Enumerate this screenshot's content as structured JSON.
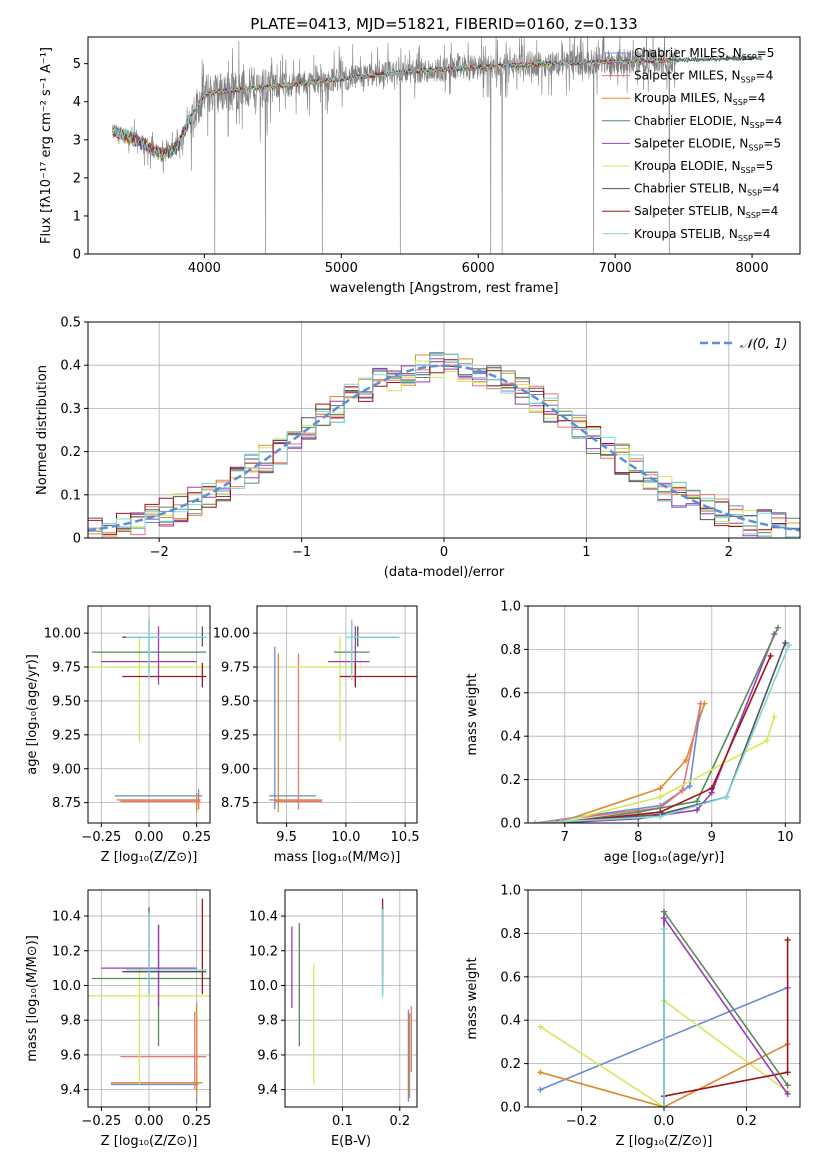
{
  "colors": {
    "Chabrier MILES": "#6a8cd8",
    "Salpeter MILES": "#e6786e",
    "Kroupa MILES": "#e08a2e",
    "Chabrier ELODIE": "#5a8a5a",
    "Salpeter ELODIE": "#9b3bb8",
    "Kroupa ELODIE": "#d4e85a",
    "Chabrier STELIB": "#555555",
    "Salpeter STELIB": "#a01418",
    "Kroupa STELIB": "#7fd8d8",
    "data": "#808080",
    "normal": "#5b8fd6"
  },
  "chart_data": [
    {
      "type": "line",
      "title": "PLATE=0413, MJD=51821, FIBERID=0160, z=0.133",
      "xlabel": "wavelength [Angstrom, rest frame]",
      "ylabel": "Flux [fλ10⁻¹⁷ erg cm⁻² s⁻¹ A⁻¹]",
      "xlim": [
        3150,
        8350
      ],
      "ylim": [
        0,
        5.7
      ],
      "xticks": [
        4000,
        5000,
        6000,
        7000,
        8000
      ],
      "yticks": [
        0,
        1,
        2,
        3,
        4,
        5
      ],
      "legend": [
        {
          "label": "Chabrier MILES, N",
          "sub": "SSP",
          "rest": "=5",
          "key": "Chabrier MILES"
        },
        {
          "label": "Salpeter MILES, N",
          "sub": "SSP",
          "rest": "=4",
          "key": "Salpeter MILES"
        },
        {
          "label": "Kroupa MILES, N",
          "sub": "SSP",
          "rest": "=4",
          "key": "Kroupa MILES"
        },
        {
          "label": "Chabrier ELODIE, N",
          "sub": "SSP",
          "rest": "=4",
          "key": "Chabrier ELODIE"
        },
        {
          "label": "Salpeter ELODIE, N",
          "sub": "SSP",
          "rest": "=5",
          "key": "Salpeter ELODIE"
        },
        {
          "label": "Kroupa ELODIE, N",
          "sub": "SSP",
          "rest": "=5",
          "key": "Kroupa ELODIE"
        },
        {
          "label": "Chabrier STELIB, N",
          "sub": "SSP",
          "rest": "=4",
          "key": "Chabrier STELIB"
        },
        {
          "label": "Salpeter STELIB, N",
          "sub": "SSP",
          "rest": "=4",
          "key": "Salpeter STELIB"
        },
        {
          "label": "Kroupa STELIB, N",
          "sub": "SSP",
          "rest": "=4",
          "key": "Kroupa STELIB"
        }
      ],
      "legend_position": "upper right",
      "continuum": [
        [
          3350,
          3.2
        ],
        [
          3500,
          3.0
        ],
        [
          3700,
          2.6
        ],
        [
          3800,
          2.8
        ],
        [
          3900,
          3.6
        ],
        [
          4000,
          4.2
        ],
        [
          4200,
          4.3
        ],
        [
          4500,
          4.4
        ],
        [
          5000,
          4.6
        ],
        [
          5500,
          4.8
        ],
        [
          6000,
          4.9
        ],
        [
          6500,
          5.0
        ],
        [
          7000,
          5.05
        ],
        [
          7500,
          5.1
        ],
        [
          8000,
          5.15
        ],
        [
          8100,
          5.15
        ]
      ]
    },
    {
      "type": "bar",
      "xlabel": "(data-model)/error",
      "ylabel": "Normed distribution",
      "xlim": [
        -2.5,
        2.5
      ],
      "ylim": [
        0,
        0.5
      ],
      "xticks": [
        -2,
        -1,
        0,
        1,
        2
      ],
      "yticks": [
        0.0,
        0.1,
        0.2,
        0.3,
        0.4,
        0.5
      ],
      "grid": true,
      "bin_width": 0.1,
      "legend": [
        {
          "label": "𝒩(0, 1)",
          "key": "normal"
        }
      ],
      "legend_position": "upper right"
    },
    {
      "type": "scatter",
      "xlabel": "Z [log₁₀(Z/Z⊙)]",
      "ylabel": "age  [log₁₀(age/yr)]",
      "xlim": [
        -0.32,
        0.32
      ],
      "ylim": [
        8.6,
        10.2
      ],
      "xticks": [
        -0.25,
        0.0,
        0.25
      ],
      "yticks": [
        8.75,
        9.0,
        9.25,
        9.5,
        9.75,
        10.0
      ],
      "grid": true
    },
    {
      "type": "scatter",
      "xlabel": "mass [log₁₀(M/M⊙)]",
      "ylabel": "",
      "xlim": [
        9.25,
        10.6
      ],
      "ylim": [
        8.6,
        10.2
      ],
      "xticks": [
        9.5,
        10.0,
        10.5
      ],
      "yticks": [
        8.75,
        9.0,
        9.25,
        9.5,
        9.75,
        10.0
      ],
      "grid": true
    },
    {
      "type": "line",
      "xlabel": "age  [log₁₀(age/yr)]",
      "ylabel": "mass weight",
      "xlim": [
        6.5,
        10.2
      ],
      "ylim": [
        0,
        1.0
      ],
      "xticks": [
        7,
        8,
        9,
        10
      ],
      "yticks": [
        0.0,
        0.2,
        0.4,
        0.6,
        0.8,
        1.0
      ],
      "grid": true,
      "series": [
        {
          "key": "Kroupa MILES",
          "x": [
            6.9,
            8.3,
            8.65,
            8.9
          ],
          "y": [
            0.0,
            0.16,
            0.29,
            0.55
          ]
        },
        {
          "key": "Chabrier MILES",
          "x": [
            6.6,
            8.3,
            8.6,
            8.7,
            8.85
          ],
          "y": [
            0.0,
            0.08,
            0.15,
            0.17,
            0.55
          ]
        },
        {
          "key": "Salpeter MILES",
          "x": [
            6.6,
            8.3,
            8.6,
            8.85
          ],
          "y": [
            0.0,
            0.07,
            0.15,
            0.55
          ]
        },
        {
          "key": "Salpeter ELODIE",
          "x": [
            6.9,
            8.0,
            8.8,
            9.0,
            9.85
          ],
          "y": [
            0.0,
            0.02,
            0.06,
            0.14,
            0.87
          ]
        },
        {
          "key": "Chabrier ELODIE",
          "x": [
            6.9,
            8.0,
            8.8,
            9.9
          ],
          "y": [
            0.0,
            0.05,
            0.1,
            0.9
          ]
        },
        {
          "key": "Kroupa ELODIE",
          "x": [
            6.9,
            8.3,
            9.75,
            9.85
          ],
          "y": [
            0.0,
            0.12,
            0.38,
            0.49
          ]
        },
        {
          "key": "Salpeter STELIB",
          "x": [
            6.9,
            8.3,
            9.0,
            9.8
          ],
          "y": [
            0.0,
            0.05,
            0.16,
            0.77
          ]
        },
        {
          "key": "Chabrier STELIB",
          "x": [
            6.9,
            8.3,
            9.2,
            10.0
          ],
          "y": [
            0.0,
            0.04,
            0.12,
            0.83
          ]
        },
        {
          "key": "Kroupa STELIB",
          "x": [
            6.6,
            8.3,
            9.2,
            10.05
          ],
          "y": [
            0.0,
            0.03,
            0.12,
            0.82
          ]
        }
      ]
    },
    {
      "type": "scatter",
      "xlabel": "Z [log₁₀(Z/Z⊙)]",
      "ylabel": "mass [log₁₀(M/M⊙)]",
      "xlim": [
        -0.32,
        0.32
      ],
      "ylim": [
        9.3,
        10.55
      ],
      "xticks": [
        -0.25,
        0.0,
        0.25
      ],
      "yticks": [
        9.4,
        9.6,
        9.8,
        10.0,
        10.2,
        10.4
      ],
      "grid": true
    },
    {
      "type": "scatter",
      "xlabel": "E(B-V)",
      "ylabel": "",
      "xlim": [
        0.0,
        0.23
      ],
      "ylim": [
        9.3,
        10.55
      ],
      "xticks": [
        0.1,
        0.2
      ],
      "yticks": [
        9.4,
        9.6,
        9.8,
        10.0,
        10.2,
        10.4
      ],
      "grid": true
    },
    {
      "type": "line",
      "xlabel": "Z [log₁₀(Z/Z⊙)]",
      "ylabel": "mass weight",
      "xlim": [
        -0.33,
        0.33
      ],
      "ylim": [
        0,
        1.0
      ],
      "xticks": [
        -0.2,
        0.0,
        0.2
      ],
      "yticks": [
        0.0,
        0.2,
        0.4,
        0.6,
        0.8,
        1.0
      ],
      "grid": true,
      "series": [
        {
          "key": "Chabrier MILES",
          "x": [
            -0.3,
            0.3
          ],
          "y": [
            0.08,
            0.55
          ]
        },
        {
          "key": "Kroupa ELODIE",
          "x": [
            -0.3,
            0.0,
            0.0,
            0.3
          ],
          "y": [
            0.37,
            0.0,
            0.49,
            0.07
          ]
        },
        {
          "key": "Kroupa MILES",
          "x": [
            -0.3,
            0.0,
            0.3
          ],
          "y": [
            0.16,
            0.0,
            0.29
          ]
        },
        {
          "key": "Salpeter STELIB",
          "x": [
            0.0,
            0.0,
            0.3,
            0.3
          ],
          "y": [
            0.0,
            0.05,
            0.16,
            0.77
          ]
        },
        {
          "key": "Chabrier ELODIE",
          "x": [
            0.0,
            0.0,
            0.3
          ],
          "y": [
            0.0,
            0.9,
            0.1
          ]
        },
        {
          "key": "Salpeter ELODIE",
          "x": [
            0.0,
            0.0,
            0.3
          ],
          "y": [
            0.0,
            0.87,
            0.06
          ]
        },
        {
          "key": "Kroupa STELIB",
          "x": [
            0.0,
            0.0
          ],
          "y": [
            0.0,
            0.82
          ]
        }
      ]
    }
  ]
}
